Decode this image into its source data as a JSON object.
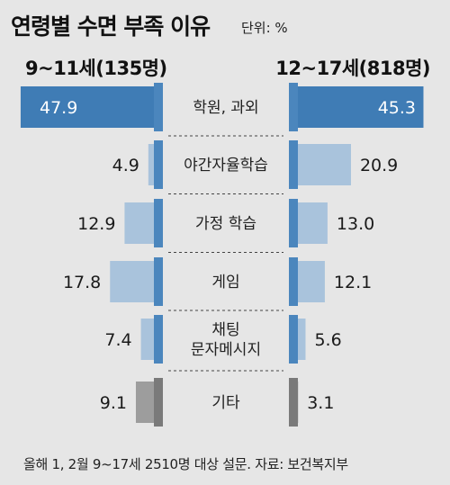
{
  "chart_data": {
    "type": "bar",
    "title": "연령별 수면 부족 이유",
    "unit": "단위: %",
    "categories": [
      "학원, 과외",
      "야간자율학습",
      "가정 학습",
      "게임",
      "채팅\n문자메시지",
      "기타"
    ],
    "series": [
      {
        "name": "9~11세(135명)",
        "values": [
          47.9,
          4.9,
          12.9,
          17.8,
          7.4,
          9.1
        ]
      },
      {
        "name": "12~17세(818명)",
        "values": [
          45.3,
          20.9,
          13.0,
          12.1,
          5.6,
          3.1
        ]
      }
    ],
    "value_labels_left": [
      "47.9",
      "4.9",
      "12.9",
      "17.8",
      "7.4",
      "9.1"
    ],
    "value_labels_right": [
      "45.3",
      "20.9",
      "13.0",
      "12.1",
      "5.6",
      "3.1"
    ],
    "footer": "올해 1, 2월 9~17세 2510명 대상 설문.",
    "source": "자료: 보건복지부",
    "colors": {
      "bar": "#a9c3dc",
      "bar_highlight": "#3f7cb5",
      "bar_other": "#9d9d9d",
      "spine": "#4b86bd",
      "spine_other": "#7a7a7a"
    }
  }
}
